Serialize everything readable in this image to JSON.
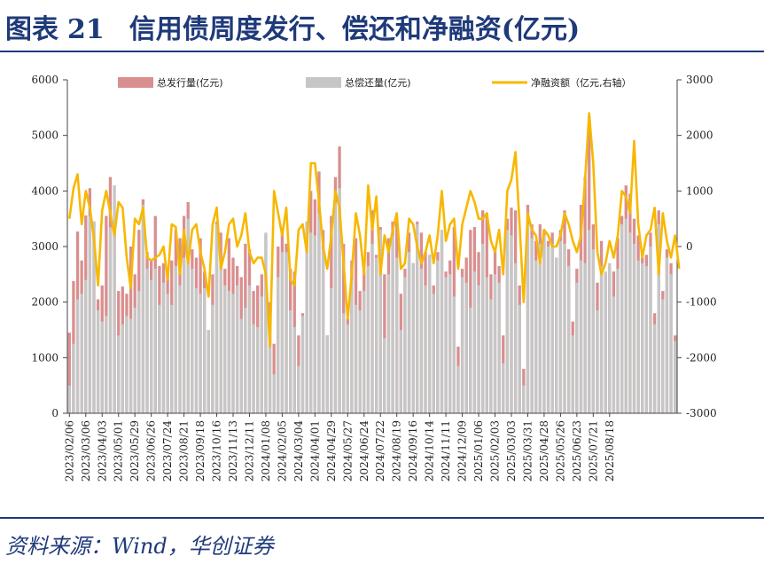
{
  "header": {
    "figure_label": "图表",
    "figure_number": "21",
    "title": "信用债周度发行、偿还和净融资(亿元)"
  },
  "footer": {
    "source": "资料来源：Wind，华创证券"
  },
  "colors": {
    "issuance": "#d98f8f",
    "repayment": "#c6c6c6",
    "net": "#f7b800",
    "brand": "#1f3a7a"
  },
  "chart_data": {
    "type": "bar",
    "title": "信用债周度发行、偿还和净融资(亿元)",
    "series": [
      {
        "name": "总发行量(亿元)",
        "type": "bar",
        "axis": "left"
      },
      {
        "name": "总偿还量(亿元)",
        "type": "bar",
        "axis": "left"
      },
      {
        "name": "净融资额（亿元,右轴）",
        "type": "line",
        "axis": "right"
      }
    ],
    "left_axis": {
      "ylim": [
        0,
        6000
      ],
      "ticks": [
        "0",
        "1000",
        "2000",
        "3000",
        "4000",
        "5000",
        "6000"
      ]
    },
    "right_axis": {
      "ylim": [
        -3000,
        3000
      ],
      "ticks": [
        "-3000",
        "-2000",
        "-1000",
        "0",
        "1000",
        "2000",
        "3000"
      ]
    },
    "x_tick_labels": [
      "2023/02/06",
      "2023/03/06",
      "2023/04/03",
      "2023/05/01",
      "2023/05/29",
      "2023/06/26",
      "2023/07/24",
      "2023/08/21",
      "2023/09/18",
      "2023/10/16",
      "2023/11/13",
      "2023/12/11",
      "2024/01/08",
      "2024/02/05",
      "2024/03/04",
      "2024/04/01",
      "2024/04/29",
      "2024/05/27",
      "2024/06/24",
      "2024/07/22",
      "2024/08/19",
      "2024/09/16",
      "2024/10/14",
      "2024/11/11",
      "2024/12/09",
      "2025/01/06",
      "2025/02/03",
      "2025/03/03",
      "2025/03/31",
      "2025/04/28",
      "2025/05/26",
      "2025/06/23",
      "2025/07/21",
      "2025/08/18"
    ],
    "weeks_per_label": 4,
    "issuance": [
      1450,
      2380,
      3270,
      2750,
      3560,
      4050,
      3450,
      2050,
      2300,
      3550,
      4250,
      3350,
      2200,
      2280,
      2150,
      3000,
      2500,
      3300,
      3850,
      2900,
      2750,
      3550,
      2650,
      2700,
      2500,
      2750,
      3300,
      3150,
      3550,
      3800,
      2950,
      2800,
      3150,
      2550,
      1500,
      2500,
      3450,
      3250,
      2600,
      3150,
      2800,
      2650,
      2450,
      3050,
      2950,
      2200,
      2300,
      2500,
      3200,
      2000,
      1250,
      3000,
      3300,
      3050,
      2600,
      2550,
      1400,
      1800,
      3150,
      4000,
      3850,
      4350,
      3300,
      1400,
      3550,
      4250,
      4800,
      3050,
      1700,
      2750,
      3150,
      2200,
      2550,
      2900,
      3650,
      2850,
      3350,
      2500,
      3150,
      3450,
      3450,
      2150,
      2600,
      3250,
      2700,
      3450,
      3250,
      2900,
      2850,
      2300,
      2900,
      3200,
      2550,
      2750,
      3350,
      1200,
      2600,
      2800,
      3300,
      3350,
      2900,
      3650,
      3600,
      2500,
      2950,
      2650,
      1400,
      3500,
      3700,
      3650,
      2300,
      800,
      3750,
      3400,
      3100,
      3400,
      3300,
      3100,
      3250,
      2800,
      3300,
      3650,
      2950,
      1650,
      2600,
      3750,
      4250,
      5350,
      3400,
      2350,
      3100,
      2500,
      2650,
      2550,
      3150,
      3550,
      4100,
      3950,
      3500,
      3200,
      2800,
      2850,
      3250,
      1800,
      3650,
      2200,
      2950,
      2700,
      1400
    ],
    "repayment": [
      500,
      1250,
      2050,
      2150,
      2400,
      3550,
      3450,
      1850,
      1650,
      1750,
      3350,
      4100,
      1400,
      1600,
      1750,
      1700,
      1900,
      2200,
      3750,
      2600,
      2400,
      2600,
      1950,
      2350,
      2150,
      1950,
      2650,
      2300,
      2800,
      3500,
      2600,
      2250,
      2150,
      2250,
      1500,
      1950,
      3400,
      2700,
      2300,
      2200,
      2150,
      2300,
      1700,
      1900,
      2300,
      1600,
      1550,
      2100,
      3250,
      1750,
      700,
      2450,
      2900,
      2900,
      1850,
      1550,
      850,
      1750,
      3450,
      3250,
      3200,
      3600,
      2950,
      1400,
      2250,
      3800,
      4050,
      1800,
      1600,
      2400,
      1950,
      1850,
      2200,
      2650,
      3050,
      2800,
      3300,
      1350,
      2500,
      3200,
      2800,
      1500,
      2450,
      2900,
      2700,
      3400,
      2600,
      2300,
      2850,
      2150,
      2750,
      3300,
      2450,
      2500,
      2100,
      850,
      2450,
      2350,
      1900,
      2550,
      2300,
      3050,
      2450,
      2050,
      2500,
      2350,
      900,
      3300,
      3200,
      2700,
      1950,
      500,
      3400,
      3150,
      2750,
      3050,
      3200,
      3000,
      3050,
      2800,
      3100,
      3050,
      2650,
      1400,
      2350,
      2750,
      2700,
      3300,
      2950,
      1850,
      2650,
      2550,
      2700,
      2100,
      2600,
      3400,
      3500,
      3250,
      3050,
      2750,
      2700,
      2650,
      3000,
      1600,
      3400,
      2050,
      2800,
      2500,
      1300
    ],
    "net": [
      500,
      1050,
      1300,
      400,
      1000,
      700,
      150,
      -700,
      650,
      1000,
      600,
      200,
      800,
      700,
      -200,
      -750,
      500,
      400,
      700,
      -200,
      -250,
      -200,
      -150,
      0,
      -600,
      400,
      350,
      -500,
      300,
      -300,
      300,
      400,
      -100,
      -400,
      -900,
      400,
      700,
      -400,
      -100,
      400,
      500,
      0,
      200,
      600,
      -100,
      -300,
      -200,
      -200,
      -500,
      -1800,
      1000,
      600,
      200,
      700,
      -600,
      -700,
      300,
      400,
      -100,
      1500,
      1500,
      800,
      0,
      -400,
      200,
      1000,
      700,
      -300,
      -1300,
      -500,
      600,
      200,
      -500,
      1100,
      300,
      900,
      -500,
      200,
      -100,
      300,
      600,
      -400,
      -300,
      500,
      400,
      0,
      -300,
      -100,
      200,
      -300,
      200,
      1000,
      100,
      400,
      500,
      -400,
      400,
      700,
      1000,
      800,
      500,
      500,
      600,
      100,
      -100,
      300,
      -500,
      1000,
      1200,
      1700,
      400,
      -1000,
      600,
      300,
      200,
      -300,
      300,
      200,
      0,
      0,
      200,
      600,
      400,
      100,
      -100,
      200,
      1200,
      2400,
      1500,
      -100,
      -500,
      -300,
      100,
      -200,
      200,
      1000,
      900,
      600,
      1900,
      400,
      -200,
      200,
      300,
      700,
      -500,
      600,
      100,
      -200,
      200,
      -400
    ]
  }
}
